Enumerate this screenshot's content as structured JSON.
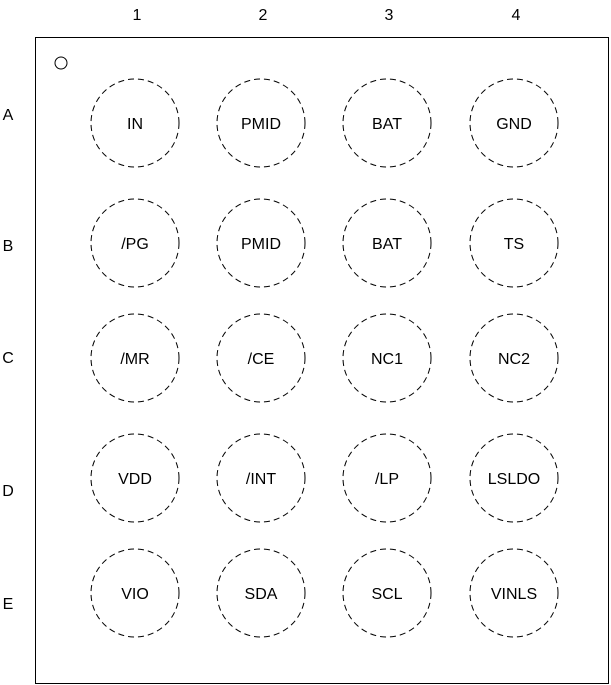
{
  "columns": [
    "1",
    "2",
    "3",
    "4"
  ],
  "rows": [
    "A",
    "B",
    "C",
    "D",
    "E"
  ],
  "pins": [
    [
      "IN",
      "PMID",
      "BAT",
      "GND"
    ],
    [
      "/PG",
      "PMID",
      "BAT",
      "TS"
    ],
    [
      "/MR",
      "/CE",
      "NC1",
      "NC2"
    ],
    [
      "VDD",
      "/INT",
      "/LP",
      "LSLDO"
    ],
    [
      "VIO",
      "SDA",
      "SCL",
      "VINLS"
    ]
  ],
  "pin1_marker": true,
  "colors": {
    "stroke": "#000000",
    "background": "#ffffff"
  }
}
